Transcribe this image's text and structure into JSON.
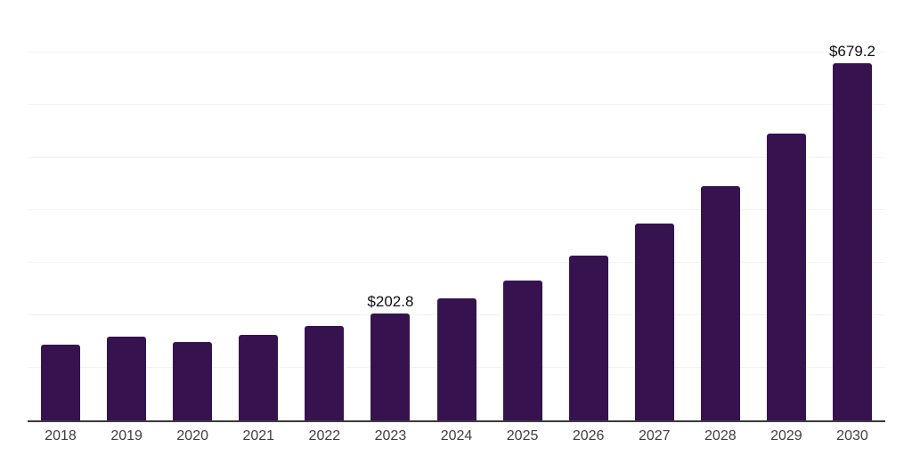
{
  "chart_data": {
    "type": "bar",
    "title": "",
    "xlabel": "",
    "ylabel": "",
    "categories": [
      "2018",
      "2019",
      "2020",
      "2021",
      "2022",
      "2023",
      "2024",
      "2025",
      "2026",
      "2027",
      "2028",
      "2029",
      "2030"
    ],
    "values": [
      144,
      159,
      149,
      162,
      179,
      202.8,
      233,
      267,
      313,
      374,
      446,
      546,
      679.2
    ],
    "value_labels": [
      "",
      "",
      "",
      "",
      "",
      "$202.8",
      "",
      "",
      "",
      "",
      "",
      "",
      "$679.2"
    ],
    "ylim": [
      0,
      800
    ],
    "gridline_interval": 100,
    "grid": "horizontal-only",
    "legend": "none",
    "colors": {
      "bar": "#36134e",
      "axis_line": "#3a3a3c",
      "gridline": "#f2f2f5",
      "tick_text": "#3e3e3e",
      "value_label_text": "#101010",
      "background": "#ffffff"
    }
  }
}
